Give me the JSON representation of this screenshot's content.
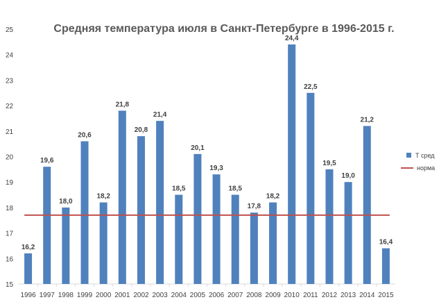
{
  "chart_data": {
    "type": "bar",
    "title": "Средняя температура июля в Санкт-Петербурге в 1996-2015 г.",
    "xlabel": "",
    "ylabel": "",
    "ylim": [
      15,
      25
    ],
    "yticks": [
      15,
      16,
      17,
      18,
      19,
      20,
      21,
      22,
      23,
      24,
      25
    ],
    "categories": [
      "1996",
      "1997",
      "1998",
      "1999",
      "2000",
      "2001",
      "2002",
      "2003",
      "2004",
      "2005",
      "2006",
      "2007",
      "2008",
      "2009",
      "2010",
      "2011",
      "2012",
      "2013",
      "2014",
      "2015"
    ],
    "series": [
      {
        "name": "Т сред",
        "type": "bar",
        "color": "#4f81bd",
        "values": [
          16.2,
          19.6,
          18.0,
          20.6,
          18.2,
          21.8,
          20.8,
          21.4,
          18.5,
          20.1,
          19.3,
          18.5,
          17.8,
          18.2,
          24.4,
          22.5,
          19.5,
          19.0,
          21.2,
          16.4
        ],
        "data_labels": [
          "16,2",
          "19,6",
          "18,0",
          "20,6",
          "18,2",
          "21,8",
          "20,8",
          "21,4",
          "18,5",
          "20,1",
          "19,3",
          "18,5",
          "17,8",
          "18,2",
          "24,4",
          "22,5",
          "19,5",
          "19,0",
          "21,2",
          "16,4"
        ]
      },
      {
        "name": "норма",
        "type": "line",
        "color": "#c0504d",
        "value": 17.7
      }
    ],
    "grid": false,
    "legend_position": "right"
  }
}
